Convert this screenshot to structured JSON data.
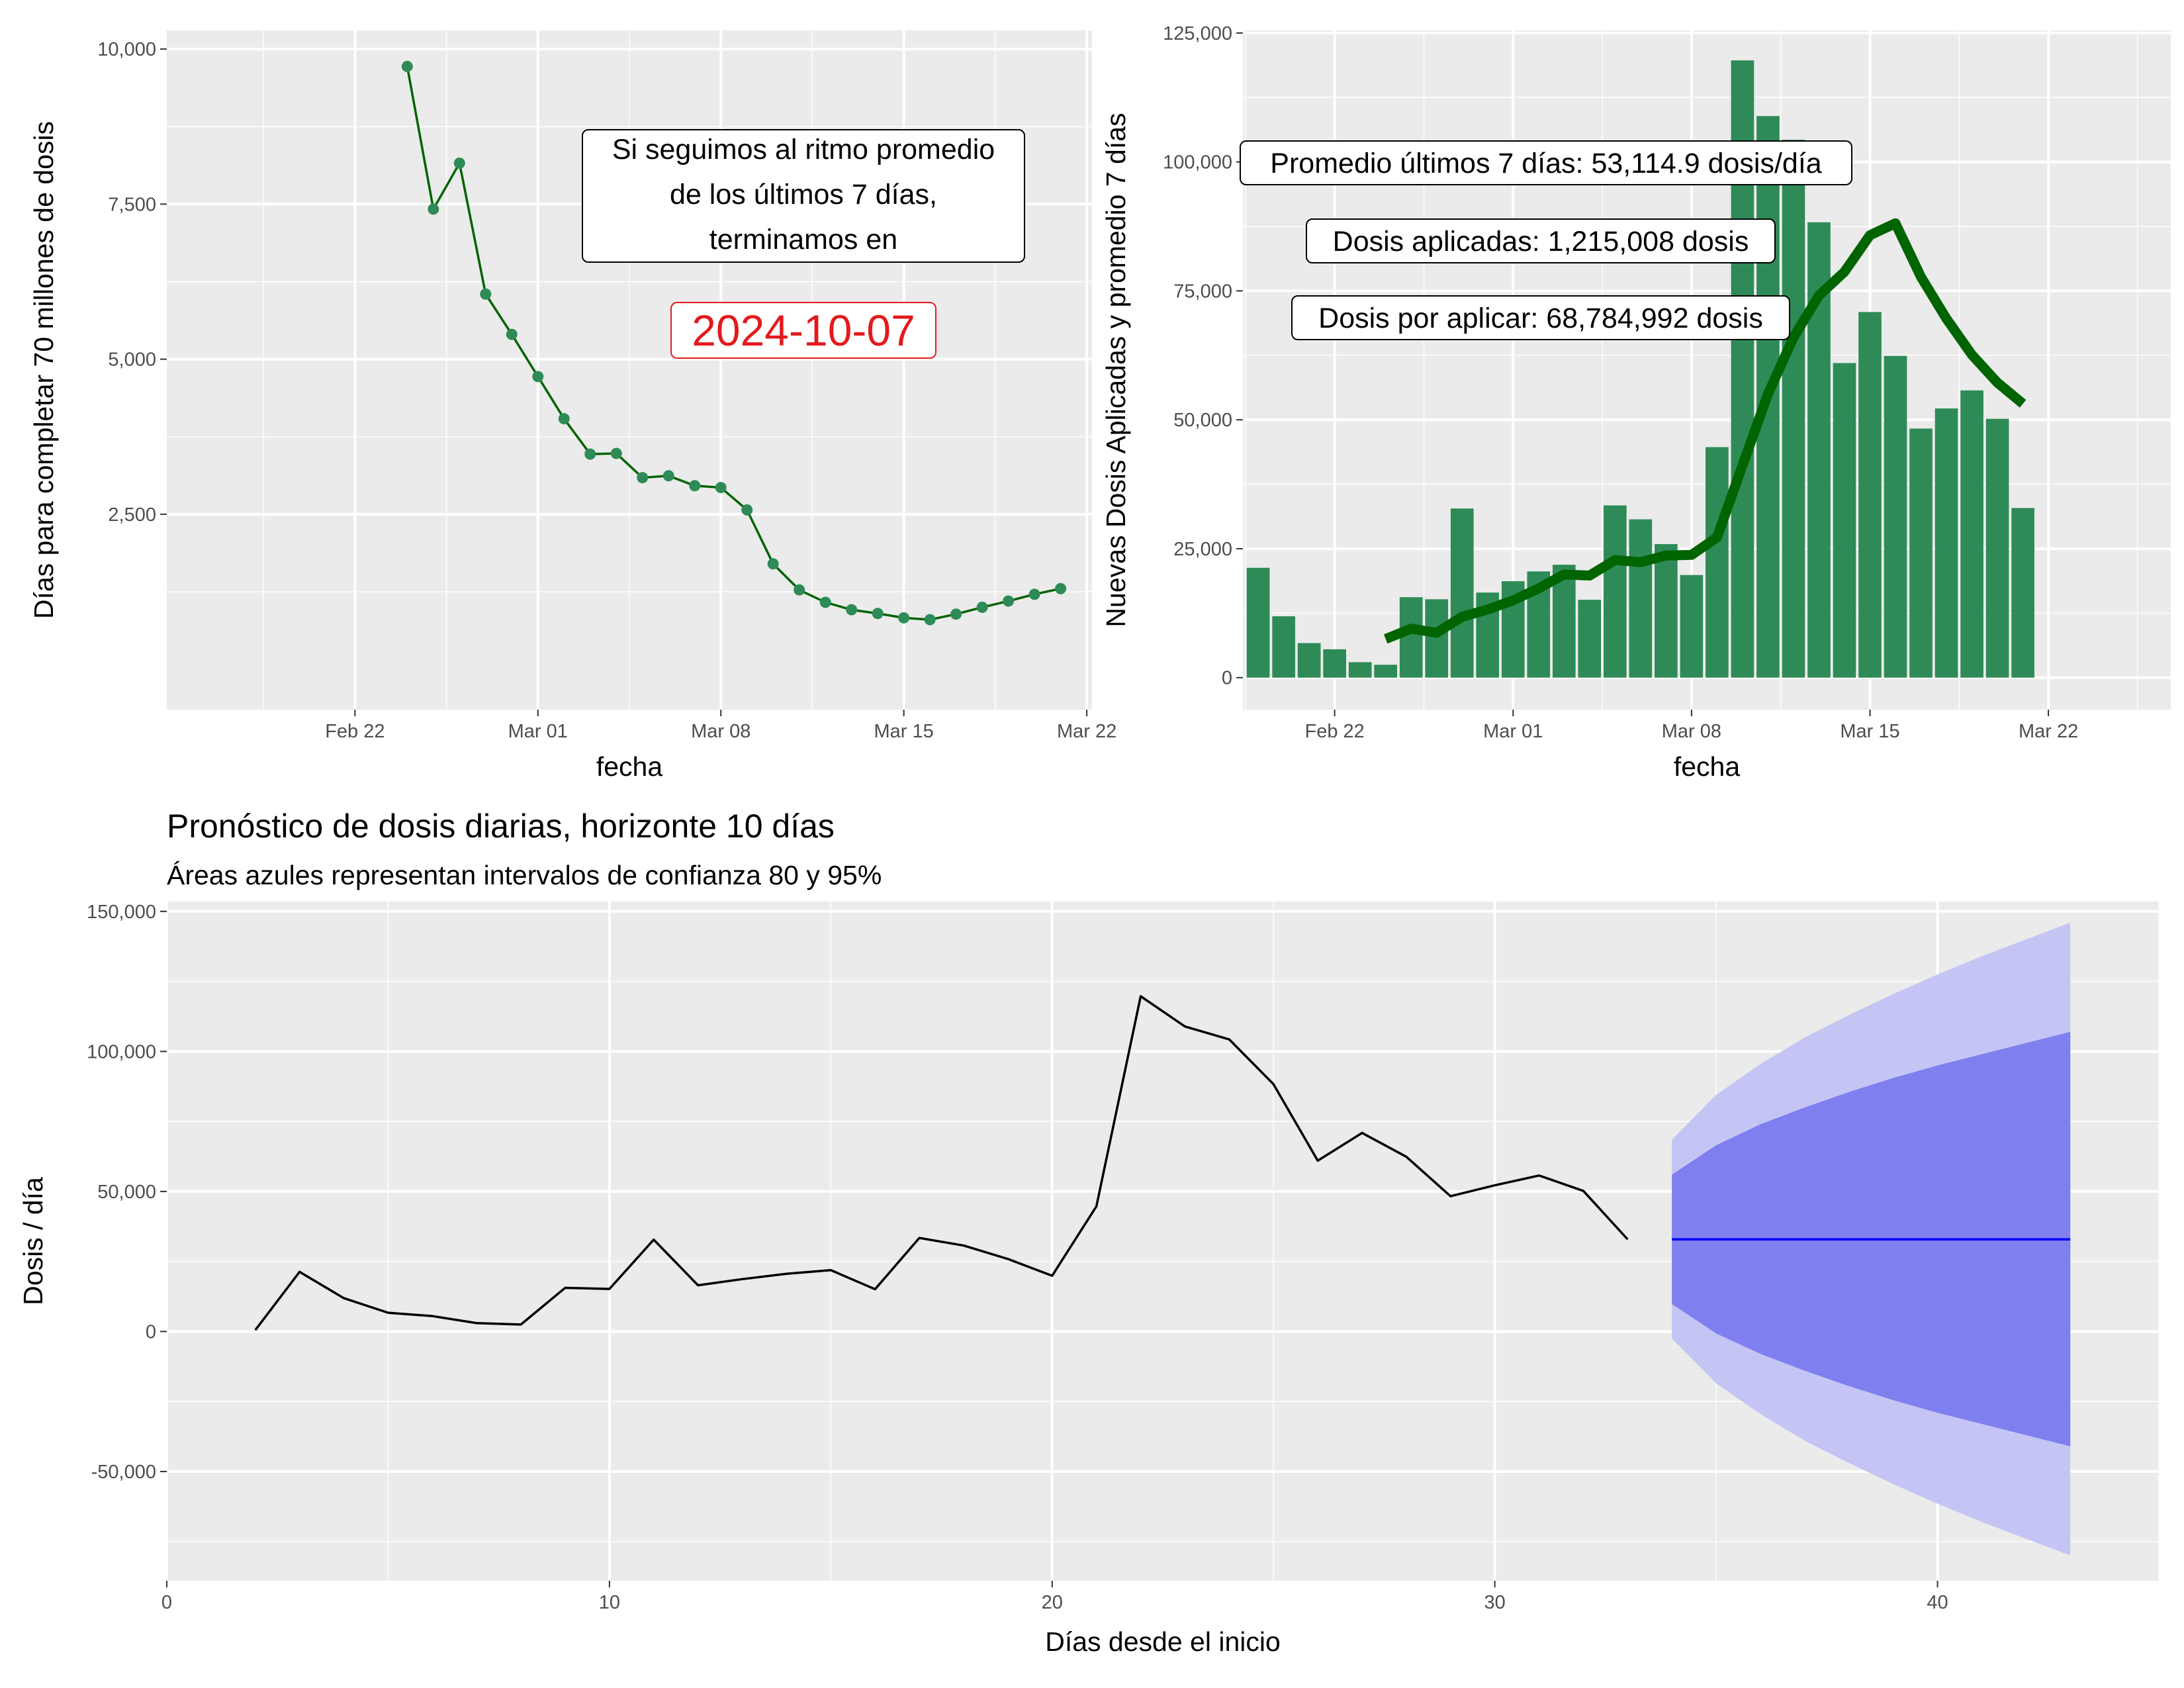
{
  "chart_data": [
    {
      "type": "line",
      "xlabel": "fecha",
      "ylabel": "Días para completar 70 millones de dosis",
      "x_ticks": [
        "Feb 22",
        "Mar 01",
        "Mar 08",
        "Mar 15",
        "Mar 22"
      ],
      "y_ticks": [
        "2,500",
        "5,000",
        "7,500",
        "10,000"
      ],
      "x_start_date": "2021-02-18",
      "xlim": [
        -3.2,
        32.2
      ],
      "ylim": [
        -650,
        10300
      ],
      "ytick_values": [
        2500,
        5000,
        7500,
        10000
      ],
      "series": [
        {
          "x": [
            "2021-02-24",
            "2021-02-25",
            "2021-02-26",
            "2021-02-27",
            "2021-02-28",
            "2021-03-01",
            "2021-03-02",
            "2021-03-03",
            "2021-03-04",
            "2021-03-05",
            "2021-03-06",
            "2021-03-07",
            "2021-03-08",
            "2021-03-09",
            "2021-03-10",
            "2021-03-11",
            "2021-03-12",
            "2021-03-13",
            "2021-03-14",
            "2021-03-15",
            "2021-03-16",
            "2021-03-17",
            "2021-03-18",
            "2021-03-19",
            "2021-03-20",
            "2021-03-21"
          ],
          "y": [
            9720,
            7420,
            8160,
            6050,
            5400,
            4720,
            4040,
            3470,
            3480,
            3090,
            3120,
            2960,
            2930,
            2570,
            1700,
            1280,
            1080,
            960,
            900,
            830,
            800,
            890,
            1000,
            1100,
            1210,
            1300
          ]
        }
      ],
      "colors": {
        "line": "#006400",
        "points": "#2e8b57"
      },
      "annotation": {
        "lines": [
          "Si seguimos al ritmo promedio",
          "de los últimos 7 días,",
          "terminamos en"
        ],
        "date": "2024-10-07"
      }
    },
    {
      "type": "bar",
      "xlabel": "fecha",
      "ylabel": "Nuevas Dosis Aplicadas y promedio 7 días",
      "x_ticks": [
        "Feb 22",
        "Mar 01",
        "Mar 08",
        "Mar 15",
        "Mar 22"
      ],
      "y_ticks": [
        "0",
        "25,000",
        "50,000",
        "75,000",
        "100,000",
        "125,000"
      ],
      "ytick_values": [
        0,
        25000,
        50000,
        75000,
        100000,
        125000
      ],
      "xlim": [
        -0.6,
        35.8
      ],
      "ylim": [
        -6200,
        125500
      ],
      "categories": [
        "2021-02-19",
        "2021-02-20",
        "2021-02-21",
        "2021-02-22",
        "2021-02-23",
        "2021-02-24",
        "2021-02-25",
        "2021-02-26",
        "2021-02-27",
        "2021-02-28",
        "2021-03-01",
        "2021-03-02",
        "2021-03-03",
        "2021-03-04",
        "2021-03-05",
        "2021-03-06",
        "2021-03-07",
        "2021-03-08",
        "2021-03-09",
        "2021-03-10",
        "2021-03-11",
        "2021-03-12",
        "2021-03-13",
        "2021-03-14",
        "2021-03-15",
        "2021-03-16",
        "2021-03-17",
        "2021-03-18",
        "2021-03-19",
        "2021-03-20",
        "2021-03-21"
      ],
      "values": [
        21300,
        11900,
        6700,
        5500,
        3000,
        2500,
        15600,
        15200,
        32800,
        16500,
        18700,
        20600,
        21900,
        15100,
        33400,
        30700,
        25900,
        19900,
        44700,
        119700,
        108900,
        104300,
        88300,
        61000,
        70900,
        62400,
        48300,
        52200,
        55700,
        50200,
        32900
      ],
      "moving_average": {
        "x": [
          "2021-02-24",
          "2021-02-25",
          "2021-02-26",
          "2021-02-27",
          "2021-02-28",
          "2021-03-01",
          "2021-03-02",
          "2021-03-03",
          "2021-03-04",
          "2021-03-05",
          "2021-03-06",
          "2021-03-07",
          "2021-03-08",
          "2021-03-09",
          "2021-03-10",
          "2021-03-11",
          "2021-03-12",
          "2021-03-13",
          "2021-03-14",
          "2021-03-15",
          "2021-03-16",
          "2021-03-17",
          "2021-03-18",
          "2021-03-19",
          "2021-03-20",
          "2021-03-21"
        ],
        "values": [
          7500,
          9500,
          8700,
          11800,
          13200,
          15000,
          17300,
          20000,
          19800,
          22800,
          22400,
          23700,
          23800,
          27200,
          41200,
          55000,
          66000,
          74100,
          78700,
          85800,
          88100,
          77700,
          69600,
          62600,
          57200,
          53115
        ]
      },
      "colors": {
        "bars": "#2e8b57",
        "average": "#006400"
      },
      "annotations": [
        "Promedio últimos 7 días: 53,114.9 dosis/día",
        "Dosis aplicadas: 1,215,008 dosis",
        "Dosis por aplicar: 68,784,992 dosis"
      ]
    },
    {
      "type": "line",
      "title": "Pronóstico de dosis diarias, horizonte 10 días",
      "subtitle": "Áreas azules representan intervalos de confianza 80 y 95%",
      "xlabel": "Días desde el inicio",
      "ylabel": "Dosis / día",
      "x_ticks": [
        "0",
        "10",
        "20",
        "30",
        "40"
      ],
      "y_ticks": [
        "-50,000",
        "0",
        "50,000",
        "100,000",
        "150,000"
      ],
      "xtick_values": [
        0,
        10,
        20,
        30,
        40
      ],
      "ytick_values": [
        -50000,
        0,
        50000,
        100000,
        150000
      ],
      "xlim": [
        0,
        45
      ],
      "ylim": [
        -89000,
        153500
      ],
      "series": [
        {
          "x": [
            2,
            3,
            4,
            5,
            6,
            7,
            8,
            9,
            10,
            11,
            12,
            13,
            14,
            15,
            16,
            17,
            18,
            19,
            20,
            21,
            22,
            23,
            24,
            25,
            26,
            27,
            28,
            29,
            30,
            31,
            32,
            33
          ],
          "y": [
            500,
            21300,
            11900,
            6700,
            5500,
            3000,
            2500,
            15600,
            15200,
            32800,
            16500,
            18700,
            20600,
            21900,
            15100,
            33400,
            30700,
            25900,
            19900,
            44700,
            119700,
            108900,
            104300,
            88300,
            61000,
            70900,
            62400,
            48300,
            52200,
            55700,
            50200,
            32900
          ]
        }
      ],
      "forecast": {
        "x": [
          34,
          35,
          36,
          37,
          38,
          39,
          40,
          41,
          42,
          43
        ],
        "mean": [
          32900,
          32900,
          32900,
          32900,
          32900,
          32900,
          32900,
          32900,
          32900,
          32900
        ],
        "lo80": [
          9800,
          -700,
          -8000,
          -14000,
          -19500,
          -24500,
          -29000,
          -33000,
          -37000,
          -41000
        ],
        "hi80": [
          56000,
          66500,
          74000,
          80000,
          85500,
          90500,
          95000,
          99000,
          103000,
          107000
        ],
        "lo95": [
          -2500,
          -18500,
          -29500,
          -39000,
          -47000,
          -54500,
          -61500,
          -68000,
          -74000,
          -80000
        ],
        "hi95": [
          68500,
          84500,
          95500,
          105000,
          113000,
          120500,
          127500,
          134000,
          140000,
          146000
        ]
      },
      "colors": {
        "line": "#000000",
        "mean": "#0000ff",
        "band80": "#7f7ff0",
        "band95": "#c5c5f5"
      }
    }
  ]
}
